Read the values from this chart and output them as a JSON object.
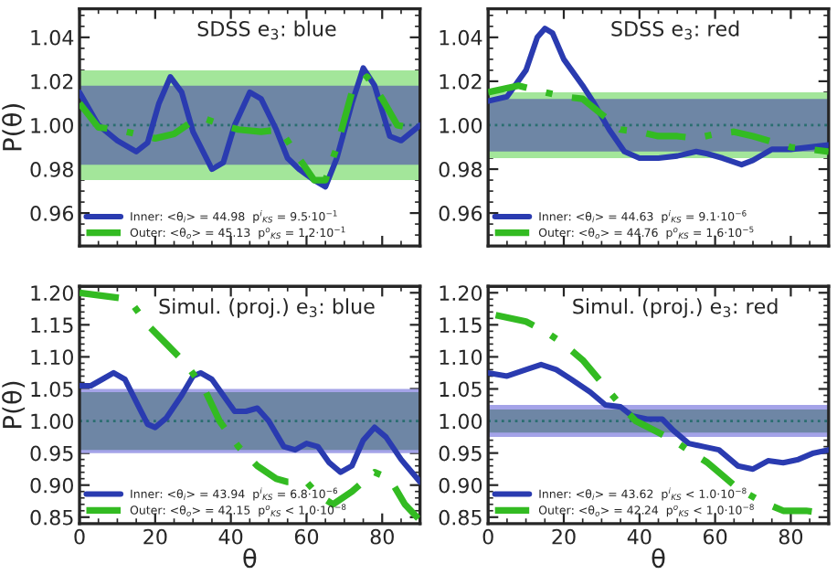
{
  "chart_data": [
    {
      "type": "line",
      "title": "SDSS e$_{3}$: blue",
      "ylabel": "P(θ)",
      "xlim": [
        0,
        90
      ],
      "xticks": [
        0,
        20,
        40,
        60,
        80
      ],
      "ylim": [
        0.945,
        1.053
      ],
      "yticks": [
        {
          "value": 0.96,
          "label": "0.96"
        },
        {
          "value": 0.98,
          "label": "0.98"
        },
        {
          "value": 1.0,
          "label": "1.00"
        },
        {
          "value": 1.02,
          "label": "1.02"
        },
        {
          "value": 1.04,
          "label": "1.04"
        }
      ],
      "tick_labels": "y",
      "legend": "bottom left",
      "bands": [
        {
          "axis": "y",
          "from": 0.975,
          "to": 1.025,
          "color": "#a3e69a"
        },
        {
          "axis": "y",
          "from": 0.982,
          "to": 1.018,
          "color": "#6e86a5"
        }
      ],
      "ref_lines": [
        {
          "axis": "y",
          "value": 1.0,
          "color": "#2a6e70",
          "line_style": "dotted"
        }
      ],
      "series": [
        {
          "name": "Inner: <θ$_{i}$> = 44.98  p$^{i}$$_{KS}$ = 9.5·10$^{−1}$",
          "color": "#2a3bb0",
          "line_style": "solid",
          "x": [
            0,
            5,
            10,
            15,
            18,
            21,
            24,
            27,
            30,
            35,
            38,
            41,
            45,
            48,
            52,
            55,
            58,
            62,
            65,
            68,
            72,
            75,
            78,
            82,
            85,
            90
          ],
          "values": [
            1.015,
            1.0,
            0.993,
            0.988,
            0.992,
            1.01,
            1.022,
            1.015,
            0.997,
            0.98,
            0.983,
            1.0,
            1.015,
            1.012,
            0.998,
            0.985,
            0.98,
            0.975,
            0.972,
            0.985,
            1.01,
            1.026,
            1.018,
            0.995,
            0.993,
            1.0
          ]
        },
        {
          "name": "Outer: <θ$_{o}$> = 45.13  p$^{o}$$_{KS}$ = 1.2·10$^{−1}$",
          "color": "#33bb22",
          "line_style": "dashdot",
          "x": [
            0,
            5,
            10,
            15,
            20,
            25,
            30,
            33,
            38,
            42,
            48,
            53,
            58,
            62,
            65,
            68,
            72,
            76,
            80,
            84,
            90
          ],
          "values": [
            1.01,
            0.999,
            0.998,
            0.996,
            0.994,
            0.996,
            1.002,
            1.003,
            1.0,
            0.998,
            0.997,
            0.998,
            0.985,
            0.975,
            0.975,
            0.99,
            1.015,
            1.022,
            1.012,
            1.0,
            0.998
          ]
        }
      ]
    },
    {
      "type": "line",
      "title": "SDSS e$_{3}$: red",
      "xlim": [
        0,
        90
      ],
      "xticks": [
        0,
        20,
        40,
        60,
        80
      ],
      "ylim": [
        0.945,
        1.053
      ],
      "yticks": [
        {
          "value": 0.96,
          "label": "0.96"
        },
        {
          "value": 0.98,
          "label": "0.98"
        },
        {
          "value": 1.0,
          "label": "1.00"
        },
        {
          "value": 1.02,
          "label": "1.02"
        },
        {
          "value": 1.04,
          "label": "1.04"
        }
      ],
      "tick_labels": "y",
      "legend": "bottom left",
      "bands": [
        {
          "axis": "y",
          "from": 0.985,
          "to": 1.015,
          "color": "#a3e69a"
        },
        {
          "axis": "y",
          "from": 0.988,
          "to": 1.012,
          "color": "#6e86a5"
        }
      ],
      "ref_lines": [
        {
          "axis": "y",
          "value": 1.0,
          "color": "#2a6e70",
          "line_style": "dotted"
        }
      ],
      "series": [
        {
          "name": "Inner: <θ$_{i}$> = 44.63  p$^{i}$$_{KS}$ = 9.1·10$^{−6}$",
          "color": "#2a3bb0",
          "line_style": "solid",
          "x": [
            0,
            5,
            10,
            13,
            15,
            17,
            20,
            25,
            28,
            32,
            36,
            40,
            45,
            50,
            55,
            58,
            62,
            67,
            70,
            75,
            80,
            90
          ],
          "values": [
            1.011,
            1.013,
            1.025,
            1.04,
            1.044,
            1.042,
            1.03,
            1.018,
            1.01,
            0.998,
            0.988,
            0.985,
            0.985,
            0.986,
            0.988,
            0.987,
            0.985,
            0.982,
            0.984,
            0.989,
            0.989,
            0.991
          ]
        },
        {
          "name": "Outer: <θ$_{o}$> = 44.76  p$^{o}$$_{KS}$ = 1.6·10$^{−5}$",
          "color": "#33bb22",
          "line_style": "dashdot",
          "x": [
            0,
            8,
            15,
            20,
            25,
            30,
            35,
            40,
            45,
            50,
            55,
            60,
            65,
            70,
            80,
            90
          ],
          "values": [
            1.015,
            1.018,
            1.015,
            1.013,
            1.012,
            1.005,
            0.998,
            0.997,
            0.995,
            0.995,
            0.994,
            0.996,
            0.997,
            0.995,
            0.99,
            0.988
          ]
        }
      ]
    },
    {
      "type": "line",
      "title": "Simul. (proj.) e$_{3}$: blue",
      "xlabel": "θ",
      "ylabel": "P(θ)",
      "xlim": [
        0,
        90
      ],
      "xticks": [
        0,
        20,
        40,
        60,
        80
      ],
      "ylim": [
        0.84,
        1.21
      ],
      "yticks": [
        {
          "value": 0.85,
          "label": "0.85"
        },
        {
          "value": 0.9,
          "label": "0.90"
        },
        {
          "value": 0.95,
          "label": "0.95"
        },
        {
          "value": 1.0,
          "label": "1.00"
        },
        {
          "value": 1.05,
          "label": "1.05"
        },
        {
          "value": 1.1,
          "label": "1.10"
        },
        {
          "value": 1.15,
          "label": "1.15"
        },
        {
          "value": 1.2,
          "label": "1.20"
        }
      ],
      "legend": "bottom left",
      "bands": [
        {
          "axis": "y",
          "from": 0.95,
          "to": 1.05,
          "color": "#a4a3e8"
        },
        {
          "axis": "y",
          "from": 0.955,
          "to": 1.045,
          "color": "#6e86a5"
        }
      ],
      "ref_lines": [
        {
          "axis": "y",
          "value": 1.0,
          "color": "#2a6e70",
          "line_style": "dotted"
        }
      ],
      "series": [
        {
          "name": "Inner: <θ$_{i}$> = 43.94  p$^{i}$$_{KS}$ = 6.8·10$^{−6}$",
          "color": "#2a3bb0",
          "line_style": "solid",
          "x": [
            0,
            3,
            6,
            9,
            12,
            15,
            18,
            20,
            23,
            27,
            30,
            32,
            35,
            38,
            41,
            44,
            47,
            50,
            54,
            57,
            60,
            63,
            66,
            69,
            72,
            75,
            78,
            81,
            85,
            90
          ],
          "values": [
            1.055,
            1.055,
            1.065,
            1.075,
            1.065,
            1.03,
            0.995,
            0.99,
            1.005,
            1.04,
            1.07,
            1.075,
            1.065,
            1.04,
            1.015,
            1.015,
            1.02,
            1.0,
            0.96,
            0.955,
            0.965,
            0.96,
            0.935,
            0.92,
            0.93,
            0.97,
            0.99,
            0.975,
            0.94,
            0.905
          ]
        },
        {
          "name": "Outer: <θ$_{o}$> = 42.15  p$^{o}$$_{KS}$ < 1.0·10$^{−8}$",
          "color": "#33bb22",
          "line_style": "dashdot",
          "x": [
            0,
            3,
            8,
            13,
            18,
            23,
            28,
            33,
            37,
            42,
            47,
            52,
            55,
            60,
            63,
            67,
            72,
            75,
            78,
            82,
            86,
            90
          ],
          "values": [
            1.2,
            null,
            null,
            1.19,
            1.15,
            1.12,
            1.09,
            1.05,
            1.0,
            0.96,
            0.93,
            0.91,
            0.905,
            0.905,
            0.885,
            0.87,
            0.89,
            0.905,
            0.92,
            0.91,
            0.87,
            0.845
          ]
        }
      ]
    },
    {
      "type": "line",
      "title": "Simul. (proj.) e$_{3}$: red",
      "xlabel": "θ",
      "xlim": [
        0,
        90
      ],
      "xticks": [
        0,
        20,
        40,
        60,
        80
      ],
      "ylim": [
        0.84,
        1.21
      ],
      "yticks": [
        {
          "value": 0.85,
          "label": "0.85"
        },
        {
          "value": 0.9,
          "label": "0.90"
        },
        {
          "value": 0.95,
          "label": "0.95"
        },
        {
          "value": 1.0,
          "label": "1.00"
        },
        {
          "value": 1.05,
          "label": "1.05"
        },
        {
          "value": 1.1,
          "label": "1.10"
        },
        {
          "value": 1.15,
          "label": "1.15"
        },
        {
          "value": 1.2,
          "label": "1.20"
        }
      ],
      "legend": "bottom left",
      "bands": [
        {
          "axis": "y",
          "from": 0.975,
          "to": 1.025,
          "color": "#a4a3e8"
        },
        {
          "axis": "y",
          "from": 0.982,
          "to": 1.018,
          "color": "#6e86a5"
        }
      ],
      "ref_lines": [
        {
          "axis": "y",
          "value": 1.0,
          "color": "#2a6e70",
          "line_style": "dotted"
        }
      ],
      "series": [
        {
          "name": "Inner: <θ$_{i}$> = 43.62  p$^{i}$$_{KS}$ < 1.0·10$^{−8}$",
          "color": "#2a3bb0",
          "line_style": "solid",
          "x": [
            0,
            5,
            10,
            14,
            18,
            22,
            27,
            31,
            35,
            38,
            42,
            46,
            49,
            53,
            57,
            61,
            66,
            70,
            74,
            78,
            82,
            86,
            90
          ],
          "values": [
            1.075,
            1.07,
            1.08,
            1.088,
            1.08,
            1.065,
            1.045,
            1.025,
            1.022,
            1.008,
            1.003,
            1.003,
            0.985,
            0.965,
            0.96,
            0.955,
            0.93,
            0.925,
            0.938,
            0.935,
            0.94,
            0.95,
            0.955
          ]
        },
        {
          "name": "Outer: <θ$_{o}$> = 42.24  p$^{o}$$_{KS}$ < 1.0·10$^{−8}$",
          "color": "#33bb22",
          "line_style": "dashdot",
          "x": [
            2,
            6,
            10,
            15,
            20,
            25,
            30,
            35,
            39,
            44,
            49,
            54,
            58,
            62,
            66,
            72,
            78,
            84,
            90
          ],
          "values": [
            1.165,
            1.16,
            1.155,
            1.14,
            1.12,
            1.095,
            1.06,
            1.025,
            1.0,
            0.985,
            0.97,
            0.95,
            0.935,
            0.915,
            0.895,
            0.875,
            0.86,
            0.86,
            0.855
          ]
        }
      ]
    }
  ]
}
